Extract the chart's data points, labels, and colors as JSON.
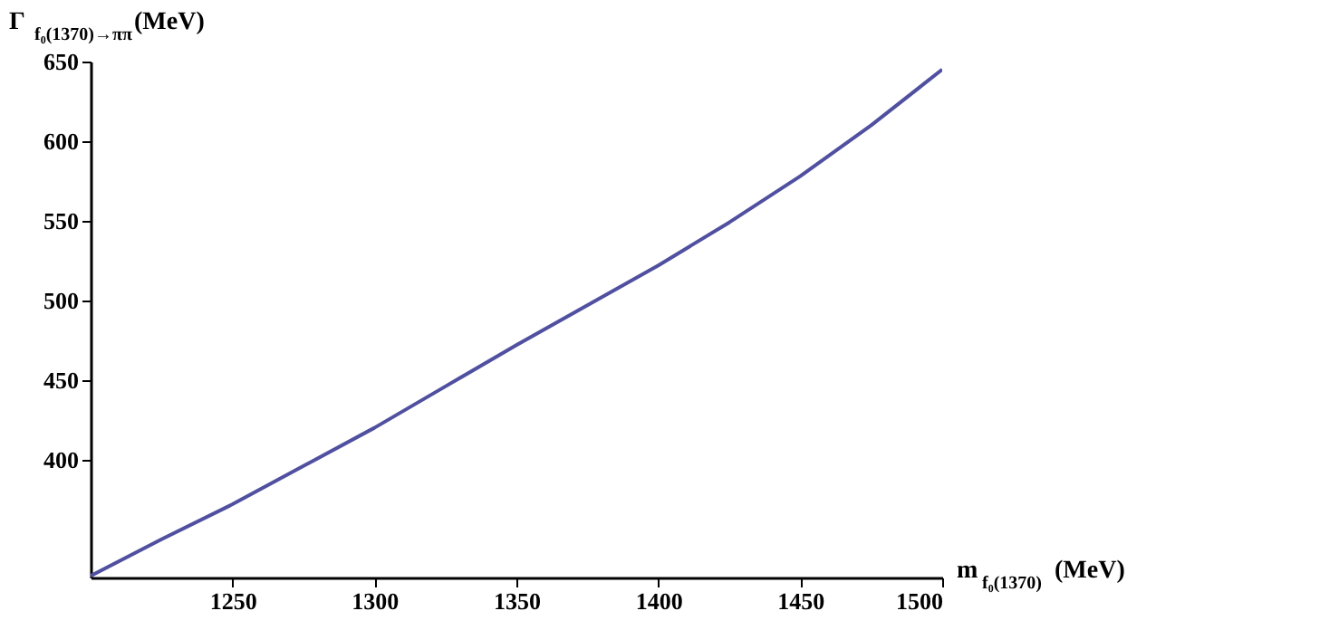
{
  "chart_data": {
    "type": "line",
    "ylabel": "Γ $_{f₀(1370)→ππ}$(MeV)",
    "xlabel": "m $_{f₀(1370)}$(MeV)",
    "x": [
      1200,
      1225,
      1250,
      1275,
      1300,
      1325,
      1350,
      1375,
      1400,
      1425,
      1450,
      1475,
      1500
    ],
    "series": [
      {
        "color": "#5050a0",
        "values": [
          327,
          350,
          372,
          396,
          420,
          446,
          472,
          497,
          522,
          549,
          578,
          610,
          645
        ]
      }
    ],
    "xlim": [
      1200,
      1500
    ],
    "ylim": [
      326,
      650
    ],
    "xticks": [
      1250,
      1300,
      1350,
      1400,
      1450,
      1500
    ],
    "yticks": [
      400,
      450,
      500,
      550,
      600,
      650
    ],
    "grid": false,
    "marker": "none",
    "line_style": "solid"
  }
}
